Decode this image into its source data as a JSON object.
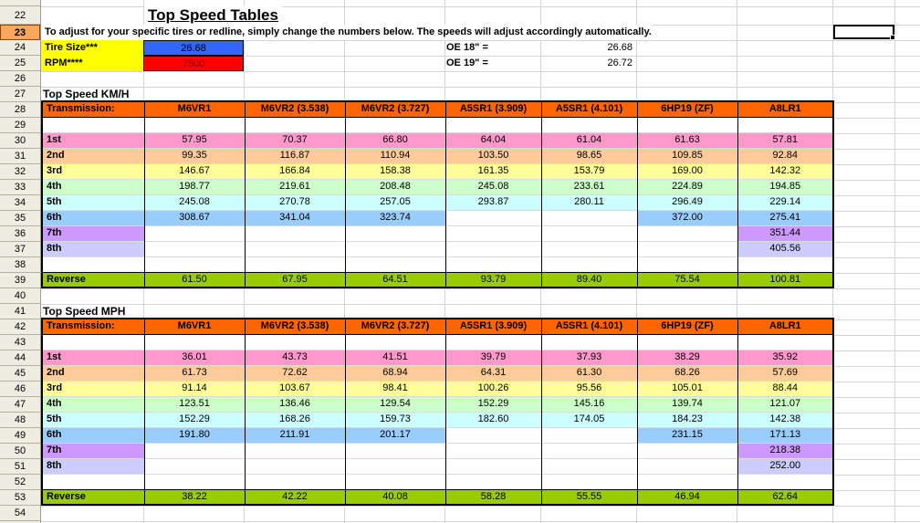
{
  "app": {
    "kind": "spreadsheet"
  },
  "colors": {
    "header_bg": "#FF6600",
    "gear_row_colors": [
      "#FF99CC",
      "#FFCC99",
      "#FFFF99",
      "#CCFFCC",
      "#CCFFFF",
      "#99CCFF",
      "#CC99FF",
      "#CCCCFF"
    ],
    "reverse_row": "#99CC00",
    "tire_label_bg": "#FFFF00",
    "tire_value_bg": "#3366FF",
    "rpm_value_bg": "#FF0000",
    "rpm_value_text": "#8B0000",
    "selected_row_header_bg": "#F9A75F",
    "gridline": "#D4D4D4"
  },
  "selection": {
    "row_header": "23"
  },
  "row_headers": [
    "22",
    "23",
    "24",
    "25",
    "26",
    "27",
    "28",
    "29",
    "30",
    "31",
    "32",
    "33",
    "34",
    "35",
    "36",
    "37",
    "38",
    "39",
    "40",
    "41",
    "42",
    "43",
    "44",
    "45",
    "46",
    "47",
    "48",
    "49",
    "50",
    "51",
    "52",
    "53",
    "54"
  ],
  "header": {
    "title": "Top Speed Tables",
    "instruction": "To adjust for your specific tires or redline, simply change the numbers below. The speeds will adjust accordingly automatically.",
    "tire_size_label": "Tire Size***",
    "tire_size_value": "26.68",
    "rpm_label": "RPM****",
    "rpm_value": "7500",
    "oe18_label": "OE 18\" =",
    "oe18_value": "26.68",
    "oe19_label": "OE 19\" =",
    "oe19_value": "26.72"
  },
  "tables": [
    {
      "section_title": "Top Speed KM/H",
      "columns": [
        "Transmission:",
        "M6VR1",
        "M6VR2 (3.538)",
        "M6VR2 (3.727)",
        "A5SR1 (3.909)",
        "A5SR1 (4.101)",
        "6HP19 (ZF)",
        "A8LR1"
      ],
      "rows": [
        {
          "label": "",
          "color": "",
          "values": [
            "",
            "",
            "",
            "",
            "",
            "",
            ""
          ]
        },
        {
          "label": "1st",
          "color": "#FF99CC",
          "values": [
            "57.95",
            "70.37",
            "66.80",
            "64.04",
            "61.04",
            "61.63",
            "57.81"
          ]
        },
        {
          "label": "2nd",
          "color": "#FFCC99",
          "values": [
            "99.35",
            "116.87",
            "110.94",
            "103.50",
            "98.65",
            "109.85",
            "92.84"
          ]
        },
        {
          "label": "3rd",
          "color": "#FFFF99",
          "values": [
            "146.67",
            "166.84",
            "158.38",
            "161.35",
            "153.79",
            "169.00",
            "142.32"
          ]
        },
        {
          "label": "4th",
          "color": "#CCFFCC",
          "values": [
            "198.77",
            "219.61",
            "208.48",
            "245.08",
            "233.61",
            "224.89",
            "194.85"
          ]
        },
        {
          "label": "5th",
          "color": "#CCFFFF",
          "values": [
            "245.08",
            "270.78",
            "257.05",
            "293.87",
            "280.11",
            "296.49",
            "229.14"
          ]
        },
        {
          "label": "6th",
          "color": "#99CCFF",
          "values": [
            "308.67",
            "341.04",
            "323.74",
            "",
            "",
            "372.00",
            "275.41"
          ]
        },
        {
          "label": "7th",
          "color": "#CC99FF",
          "values": [
            "",
            "",
            "",
            "",
            "",
            "",
            "351.44"
          ]
        },
        {
          "label": "8th",
          "color": "#CCCCFF",
          "values": [
            "",
            "",
            "",
            "",
            "",
            "",
            "405.56"
          ]
        },
        {
          "label": "",
          "color": "",
          "values": [
            "",
            "",
            "",
            "",
            "",
            "",
            ""
          ]
        },
        {
          "label": "Reverse",
          "color": "#99CC00",
          "values": [
            "61.50",
            "67.95",
            "64.51",
            "93.79",
            "89.40",
            "75.54",
            "100.81"
          ]
        }
      ]
    },
    {
      "section_title": "Top Speed MPH",
      "columns": [
        "Transmission:",
        "M6VR1",
        "M6VR2 (3.538)",
        "M6VR2 (3.727)",
        "A5SR1 (3.909)",
        "A5SR1 (4.101)",
        "6HP19 (ZF)",
        "A8LR1"
      ],
      "rows": [
        {
          "label": "",
          "color": "",
          "values": [
            "",
            "",
            "",
            "",
            "",
            "",
            ""
          ]
        },
        {
          "label": "1st",
          "color": "#FF99CC",
          "values": [
            "36.01",
            "43.73",
            "41.51",
            "39.79",
            "37.93",
            "38.29",
            "35.92"
          ]
        },
        {
          "label": "2nd",
          "color": "#FFCC99",
          "values": [
            "61.73",
            "72.62",
            "68.94",
            "64.31",
            "61.30",
            "68.26",
            "57.69"
          ]
        },
        {
          "label": "3rd",
          "color": "#FFFF99",
          "values": [
            "91.14",
            "103.67",
            "98.41",
            "100.26",
            "95.56",
            "105.01",
            "88.44"
          ]
        },
        {
          "label": "4th",
          "color": "#CCFFCC",
          "values": [
            "123.51",
            "136.46",
            "129.54",
            "152.29",
            "145.16",
            "139.74",
            "121.07"
          ]
        },
        {
          "label": "5th",
          "color": "#CCFFFF",
          "values": [
            "152.29",
            "168.26",
            "159.73",
            "182.60",
            "174.05",
            "184.23",
            "142.38"
          ]
        },
        {
          "label": "6th",
          "color": "#99CCFF",
          "values": [
            "191.80",
            "211.91",
            "201.17",
            "",
            "",
            "231.15",
            "171.13"
          ]
        },
        {
          "label": "7th",
          "color": "#CC99FF",
          "values": [
            "",
            "",
            "",
            "",
            "",
            "",
            "218.38"
          ]
        },
        {
          "label": "8th",
          "color": "#CCCCFF",
          "values": [
            "",
            "",
            "",
            "",
            "",
            "",
            "252.00"
          ]
        },
        {
          "label": "",
          "color": "",
          "values": [
            "",
            "",
            "",
            "",
            "",
            "",
            ""
          ]
        },
        {
          "label": "Reverse",
          "color": "#99CC00",
          "values": [
            "38.22",
            "42.22",
            "40.08",
            "58.28",
            "55.55",
            "46.94",
            "62.64"
          ]
        }
      ]
    }
  ]
}
